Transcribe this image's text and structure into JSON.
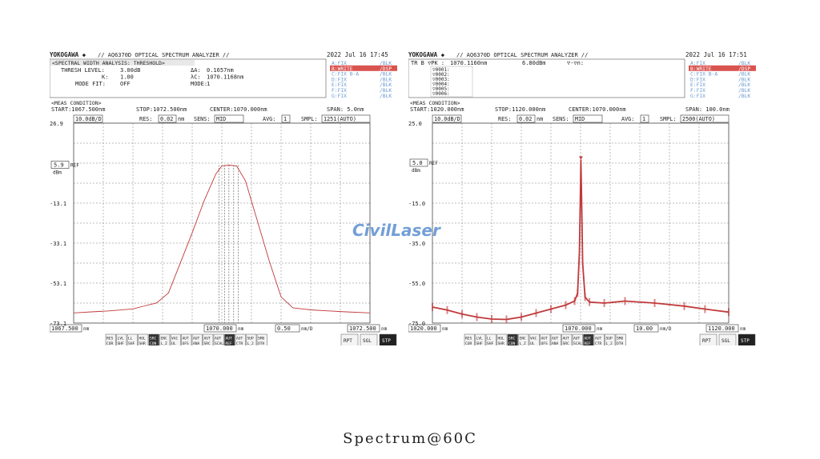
{
  "watermark": "CivilLaser",
  "caption": "Spectrum@60C",
  "colors": {
    "trace": "#c0393b",
    "grid": "#7a7a7a",
    "text": "#222222",
    "boxbg": "#ffffff",
    "highlight": "#d9534f",
    "softkey_active": "#222222"
  },
  "softkeys": [
    [
      "RES",
      "COR"
    ],
    [
      "LVL",
      "SHF"
    ],
    [
      "LL",
      "SHF"
    ],
    [
      "HOL",
      "SHR"
    ],
    [
      "SRC",
      "CON"
    ],
    [
      "ENC",
      "L_Z"
    ],
    [
      "VAC",
      "UL"
    ],
    [
      "AUT",
      "OFS"
    ],
    [
      "AUT",
      "ANA"
    ],
    [
      "AUT",
      "SRC"
    ],
    [
      "AUT",
      "SCAL"
    ],
    [
      "AUT",
      "REF"
    ],
    [
      "AUT",
      "CTR"
    ],
    [
      "SUP",
      "L_2"
    ],
    [
      "SMO",
      "OTH"
    ]
  ],
  "buttons": [
    "RPT",
    "SGL",
    "STP"
  ],
  "charts": [
    {
      "brand": "YOKOGAWA ◆",
      "model": "// AQ6370D OPTICAL SPECTRUM ANALYZER //",
      "date": "2022 Jul 16 17:45",
      "header_title": "<SPECTRAL WIDTH ANALYSIS: THRESHOLD>",
      "header_lines": [
        [
          "THRESH LEVEL:",
          "3.00dB",
          "ΔA:",
          "0.1657nm"
        ],
        [
          "K:",
          "1.00",
          "λC:",
          "1070.1168nm"
        ],
        [
          "MODE FIT:",
          "OFF",
          "MODE:",
          "1"
        ]
      ],
      "traces": [
        [
          "A:FIX",
          "/BLK"
        ],
        [
          "B:WRITE",
          "/DSP"
        ],
        [
          "C:FIX B-A",
          "/BLK"
        ],
        [
          "D:FIX",
          "/BLK"
        ],
        [
          "E:FIX",
          "/BLK"
        ],
        [
          "F:FIX",
          "/BLK"
        ],
        [
          "G:FIX",
          "/BLK"
        ]
      ],
      "active_trace": 1,
      "meas_title": "<MEAS CONDITION>",
      "start": "START:1067.500nm",
      "stop": "STOP:1072.500nm",
      "center": "CENTER:1070.000nm",
      "span": "SPAN:   5.0nm",
      "scale": "10.0dB/D",
      "res_label": "RES:",
      "res": "0.02",
      "res_unit": "nm",
      "sens_label": "SENS:",
      "sens": "MID",
      "avg_label": "AVG:",
      "avg": "1",
      "smpl_label": "SMPL:",
      "smpl": "1251(AUTO)",
      "ref_value": "5.9",
      "ref_label": "REF",
      "unit_dbm": "dBm",
      "yticks": [
        "26.9",
        "",
        "-13.1",
        "-33.1",
        "-53.1",
        "-73.1"
      ],
      "xstart_label": "1067.500",
      "xcenter_label": "1070.000",
      "xdiv_label": "0.50",
      "xend_label": "1072.500",
      "x_unit": "nm",
      "xdiv_unit": "nm/D",
      "chart_data": {
        "type": "line",
        "xlim": [
          1067.5,
          1072.5
        ],
        "ylim": [
          -73.1,
          26.9
        ],
        "ref_level": 5.9,
        "x": [
          1067.5,
          1067.8,
          1068.1,
          1068.5,
          1068.7,
          1068.9,
          1069.1,
          1069.3,
          1069.5,
          1069.7,
          1069.9,
          1070.0,
          1070.12,
          1070.25,
          1070.4,
          1070.6,
          1070.8,
          1071.0,
          1071.2,
          1071.5,
          1071.8,
          1072.1,
          1072.5
        ],
        "y": [
          -68.0,
          -67.5,
          -67.0,
          -66.0,
          -64.5,
          -63.0,
          -58.0,
          -43.0,
          -28.0,
          -12.0,
          1.5,
          5.5,
          5.9,
          5.5,
          -2.0,
          -22.0,
          -42.0,
          -60.0,
          -65.5,
          -66.5,
          -67.0,
          -67.5,
          -68.0
        ],
        "markers": [
          1069.95,
          1070.05,
          1070.12,
          1070.2,
          1070.28
        ]
      }
    },
    {
      "brand": "YOKOGAWA ◆",
      "model": "// AQ6370D OPTICAL SPECTRUM ANALYZER //",
      "date": "2022 Jul 16 17:51",
      "header_title": "",
      "header_lines": [
        [
          "TR B ▽PK :",
          "1070.1160nm",
          "6.80dBm",
          "▽-▽n:"
        ]
      ],
      "lambda_rows": [
        "▽0001:",
        "▽0002:",
        "▽0003:",
        "▽0004:",
        "▽0005:",
        "▽0006:"
      ],
      "traces": [
        [
          "A:FIX",
          "/BLK"
        ],
        [
          "B:WRITE",
          "/DSP"
        ],
        [
          "C:FIX B-A",
          "/BLK"
        ],
        [
          "D:FIX",
          "/BLK"
        ],
        [
          "E:FIX",
          "/BLK"
        ],
        [
          "F:FIX",
          "/BLK"
        ],
        [
          "G:FIX",
          "/BLK"
        ]
      ],
      "active_trace": 1,
      "meas_title": "<MEAS CONDITION>",
      "start": "START:1020.000nm",
      "stop": "STOP:1120.000nm",
      "center": "CENTER:1070.000nm",
      "span": "SPAN: 100.0nm",
      "scale": "10.0dB/D",
      "res_label": "RES:",
      "res": "0.02",
      "res_unit": "nm",
      "sens_label": "SENS:",
      "sens": "MID",
      "avg_label": "AVG:",
      "avg": "1",
      "smpl_label": "SMPL:",
      "smpl": "2500(AUTO)",
      "ref_value": "5.0",
      "ref_label": "REF",
      "unit_dbm": "dBm",
      "yticks": [
        "25.0",
        "",
        "-15.0",
        "-35.0",
        "-55.0",
        "-75.0"
      ],
      "xstart_label": "1020.000",
      "xcenter_label": "1070.000",
      "xdiv_label": "10.00",
      "xend_label": "1120.000",
      "x_unit": "nm",
      "xdiv_unit": "nm/D",
      "chart_data": {
        "type": "line",
        "xlim": [
          1020.0,
          1120.0
        ],
        "ylim": [
          -75.0,
          25.0
        ],
        "ref_level": 5.0,
        "x": [
          1020,
          1025,
          1030,
          1035,
          1040,
          1045,
          1050,
          1055,
          1060,
          1065,
          1068,
          1069,
          1069.6,
          1070.0,
          1070.12,
          1070.3,
          1070.7,
          1071.5,
          1073,
          1078,
          1085,
          1095,
          1105,
          1112,
          1120
        ],
        "y": [
          -67.0,
          -68.5,
          -70.5,
          -72.0,
          -73.0,
          -73.2,
          -72.0,
          -70.0,
          -68.0,
          -66.0,
          -64.0,
          -60.0,
          -40.0,
          -5.0,
          6.8,
          -8.0,
          -45.0,
          -62.0,
          -64.5,
          -65.0,
          -64.0,
          -65.0,
          -66.5,
          -68.0,
          -69.5
        ],
        "peak": {
          "x": 1070.116,
          "y": 6.8
        }
      }
    }
  ]
}
